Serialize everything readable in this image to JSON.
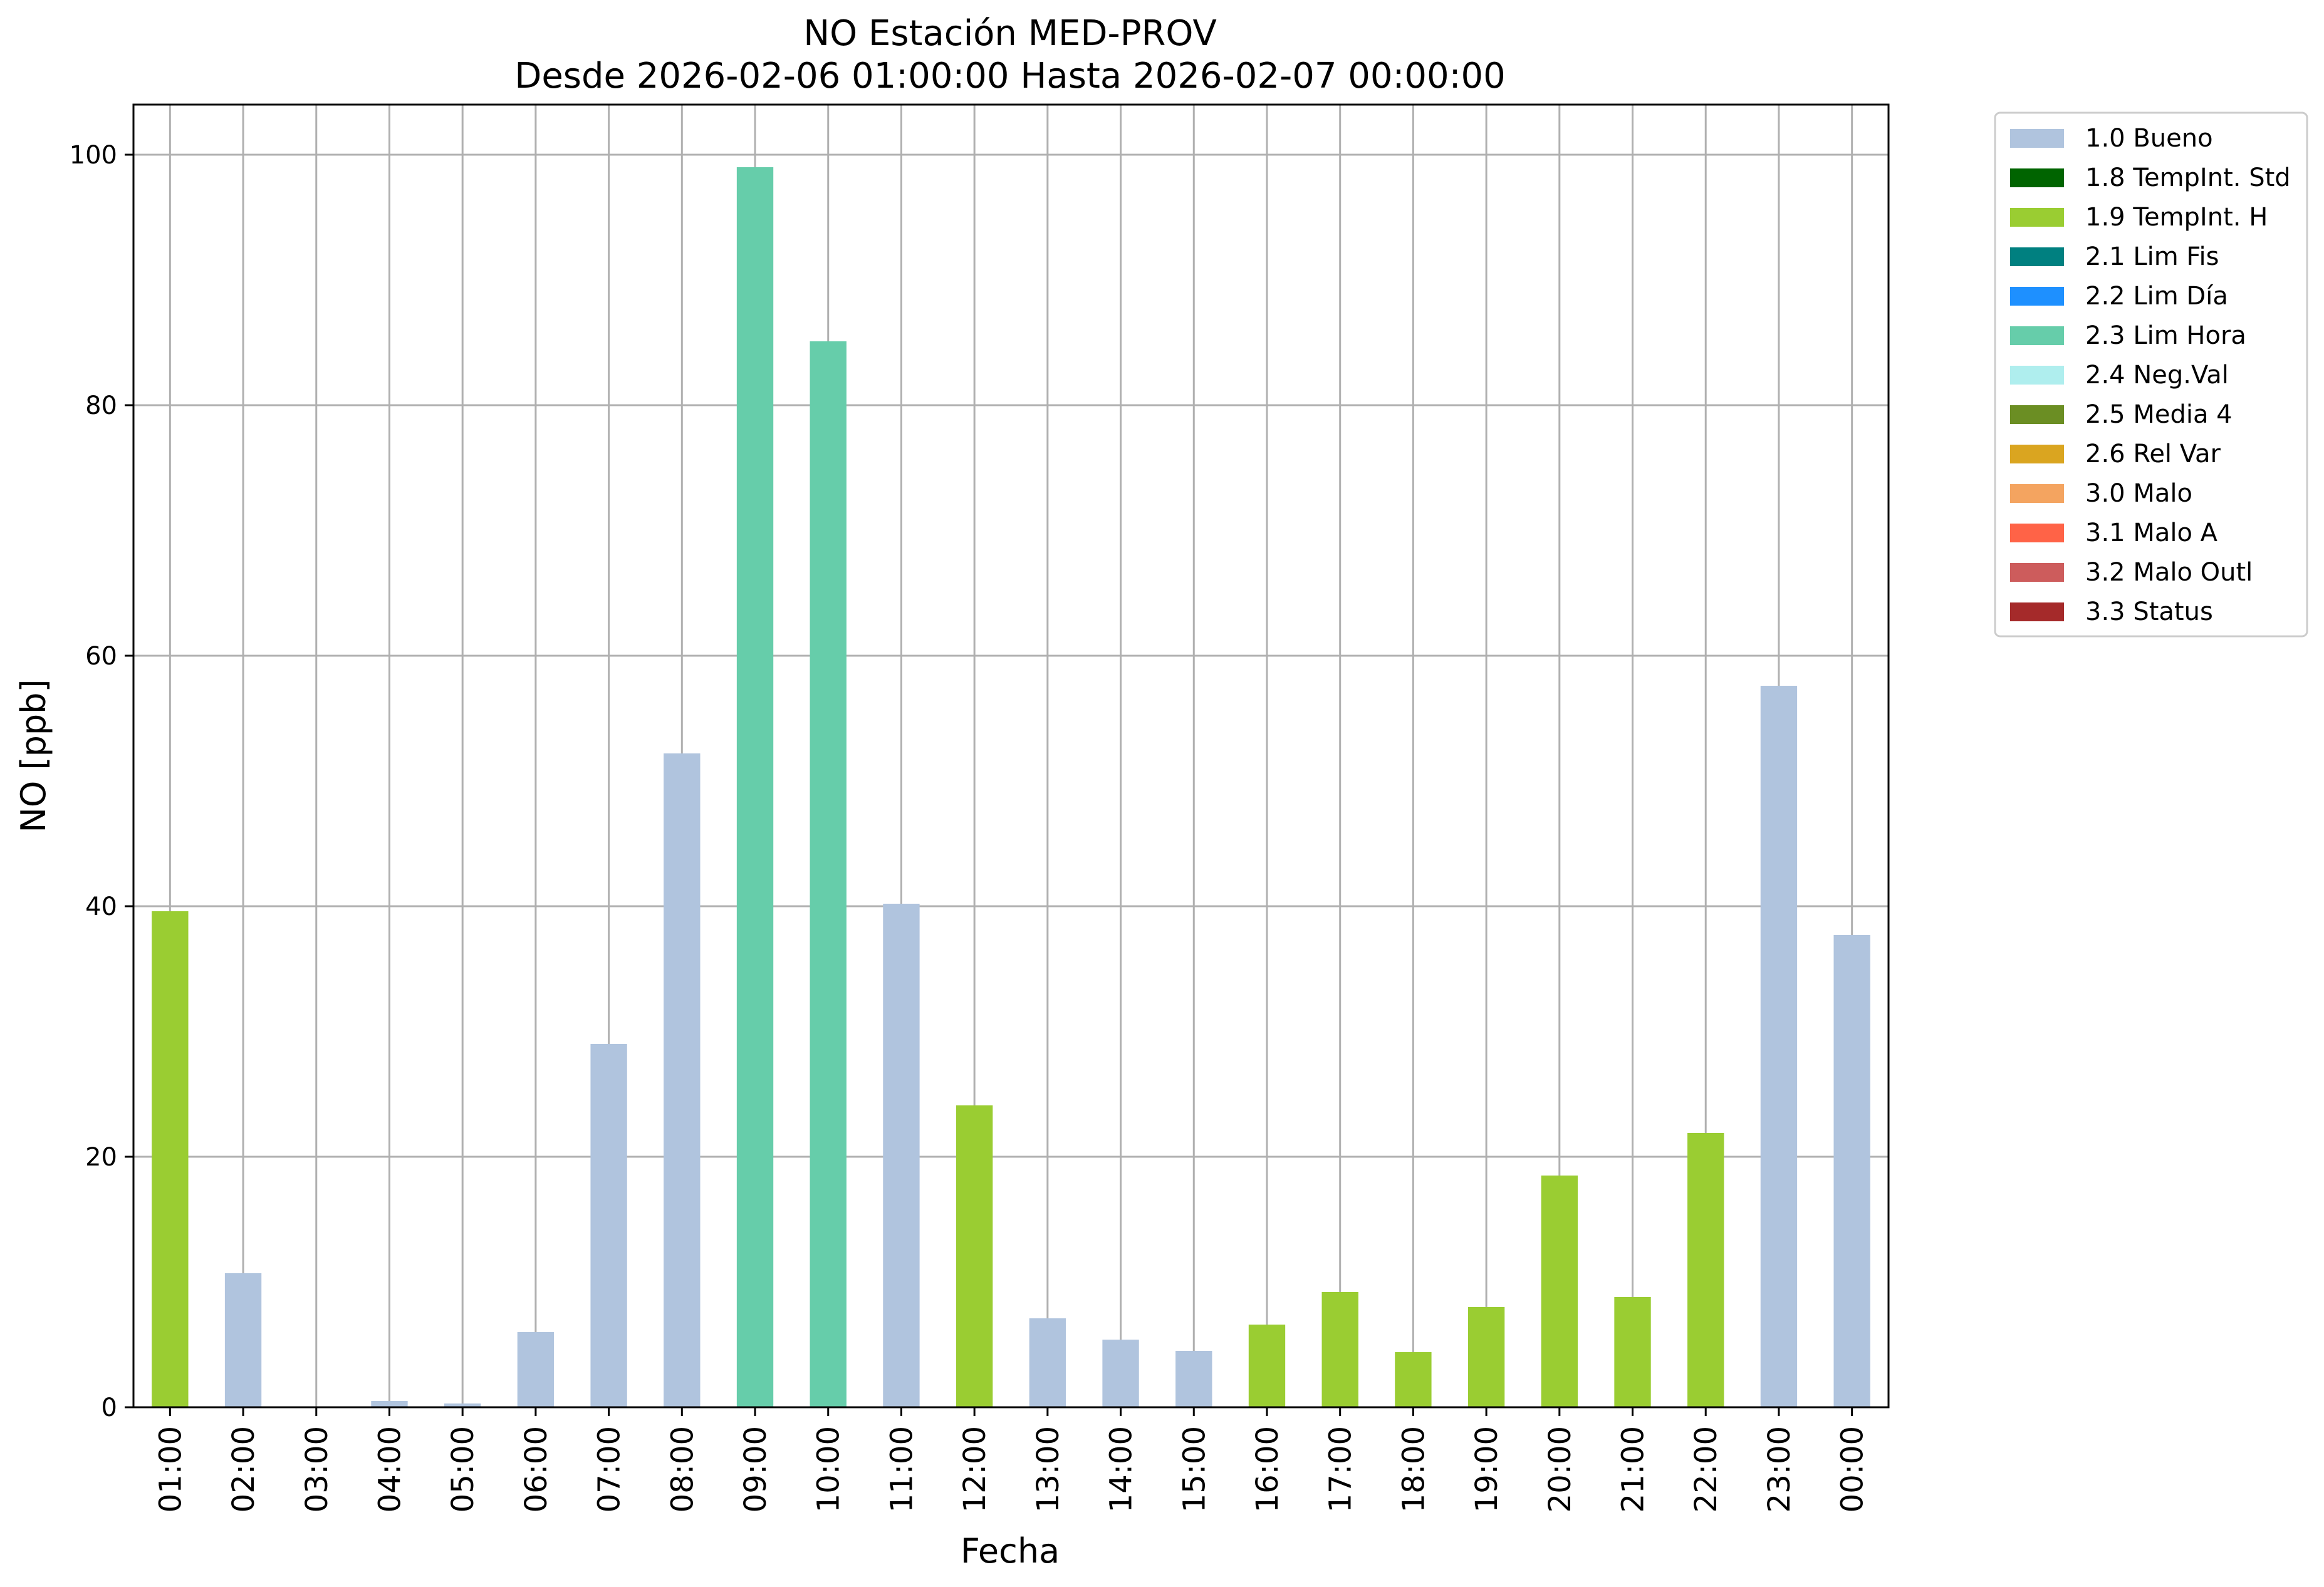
{
  "chart_data": {
    "type": "bar",
    "title": "NO Estación MED-PROV",
    "subtitle": "Desde 2026-02-06 01:00:00 Hasta 2026-02-07 00:00:00",
    "xlabel": "Fecha",
    "ylabel": "NO [ppb]",
    "ylim": [
      0,
      104
    ],
    "yticks": [
      0,
      20,
      40,
      60,
      80,
      100
    ],
    "grid": true,
    "legend_position": "outside-right",
    "categories": [
      "01:00",
      "02:00",
      "03:00",
      "04:00",
      "05:00",
      "06:00",
      "07:00",
      "08:00",
      "09:00",
      "10:00",
      "11:00",
      "12:00",
      "13:00",
      "14:00",
      "15:00",
      "16:00",
      "17:00",
      "18:00",
      "19:00",
      "20:00",
      "21:00",
      "22:00",
      "23:00",
      "00:00"
    ],
    "values": [
      39.6,
      10.7,
      0,
      0.5,
      0.3,
      6.0,
      29.0,
      52.2,
      99.0,
      85.1,
      40.2,
      24.1,
      7.1,
      5.4,
      4.5,
      6.6,
      9.2,
      4.4,
      8.0,
      18.5,
      8.8,
      21.9,
      57.6,
      37.7
    ],
    "flags": [
      "1.9 TempInt. H",
      "1.0 Bueno",
      "1.0 Bueno",
      "1.0 Bueno",
      "1.0 Bueno",
      "1.0 Bueno",
      "1.0 Bueno",
      "1.0 Bueno",
      "2.3 Lim Hora",
      "2.3 Lim Hora",
      "1.0 Bueno",
      "1.9 TempInt. H",
      "1.0 Bueno",
      "1.0 Bueno",
      "1.0 Bueno",
      "1.9 TempInt. H",
      "1.9 TempInt. H",
      "1.9 TempInt. H",
      "1.9 TempInt. H",
      "1.9 TempInt. H",
      "1.9 TempInt. H",
      "1.9 TempInt. H",
      "1.0 Bueno",
      "1.0 Bueno"
    ],
    "legend": [
      {
        "label": "1.0 Bueno",
        "color": "#b0c4de"
      },
      {
        "label": "1.8 TempInt. Std",
        "color": "#006400"
      },
      {
        "label": "1.9 TempInt. H",
        "color": "#9acd32"
      },
      {
        "label": "2.1 Lim Fis",
        "color": "#008080"
      },
      {
        "label": "2.2 Lim Día",
        "color": "#1e90ff"
      },
      {
        "label": "2.3 Lim Hora",
        "color": "#66cdaa"
      },
      {
        "label": "2.4 Neg.Val",
        "color": "#afeeee"
      },
      {
        "label": "2.5 Media 4",
        "color": "#6b8e23"
      },
      {
        "label": "2.6 Rel Var",
        "color": "#daa520"
      },
      {
        "label": "3.0 Malo",
        "color": "#f4a460"
      },
      {
        "label": "3.1 Malo A",
        "color": "#ff6347"
      },
      {
        "label": "3.2 Malo Outl",
        "color": "#cd5c5c"
      },
      {
        "label": "3.3 Status",
        "color": "#a52a2a"
      }
    ]
  }
}
